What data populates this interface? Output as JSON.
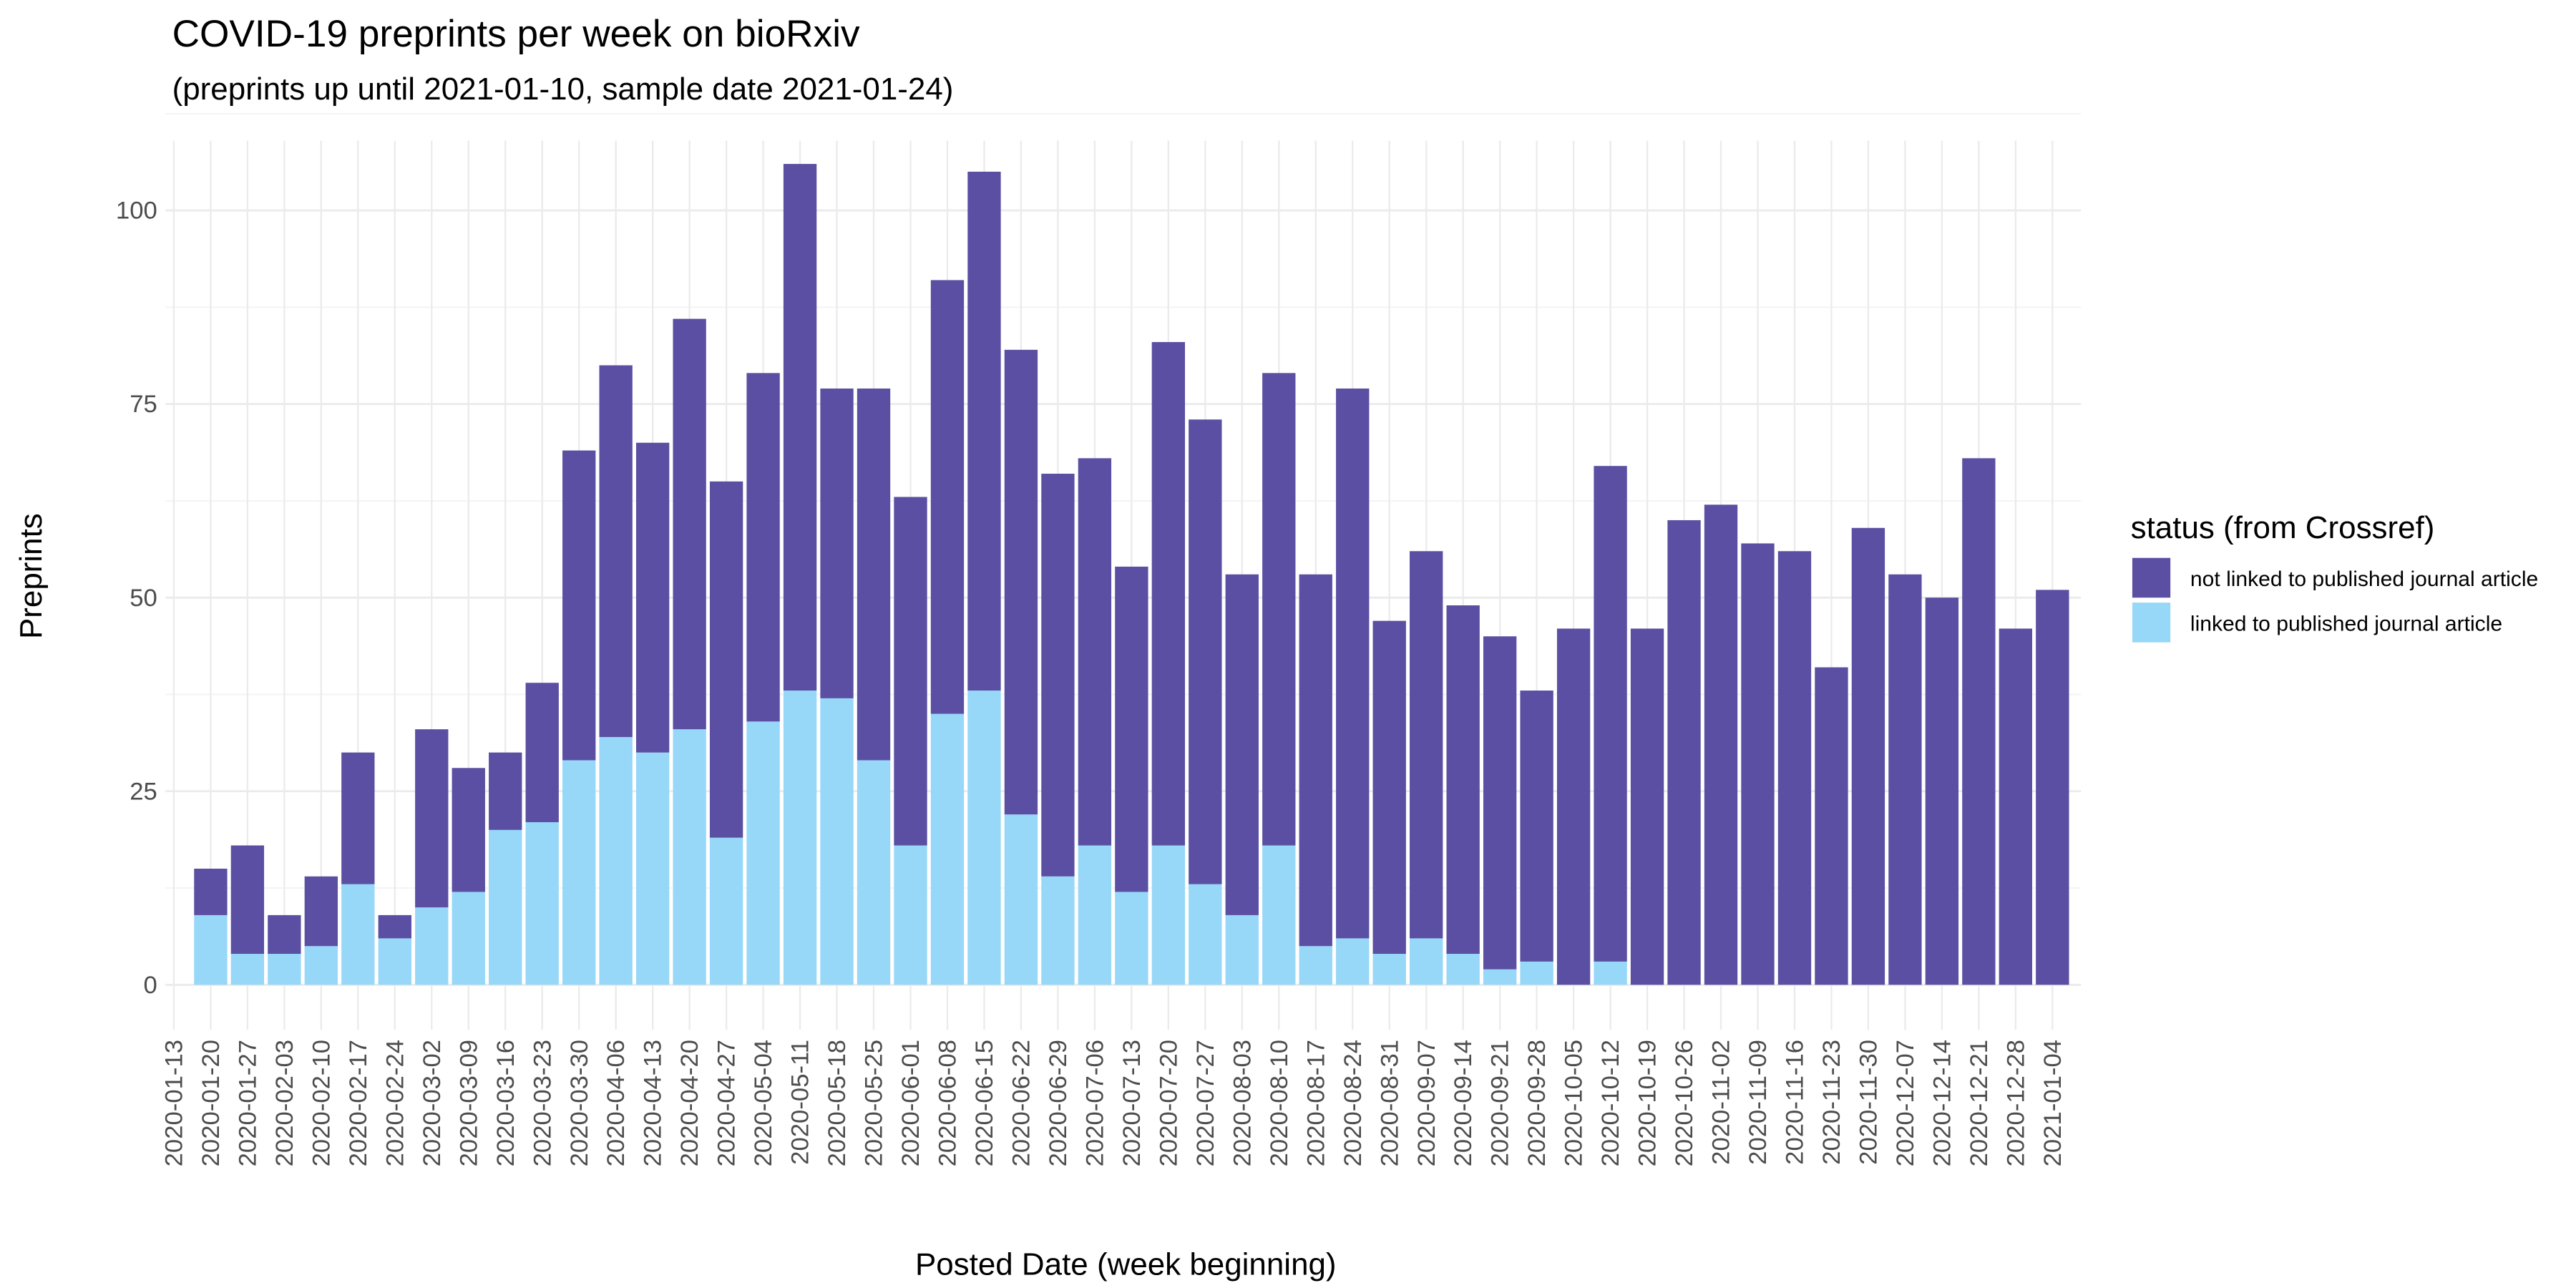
{
  "chart_data": {
    "type": "bar",
    "stacked": true,
    "title": "COVID-19 preprints per week on bioRxiv",
    "subtitle": "(preprints up until 2021-01-10, sample date 2021-01-24)",
    "x_label": "Posted Date (week beginning)",
    "y_label": "Preprints",
    "legend_title": "status (from Crossref)",
    "legend_position": "right",
    "grid": true,
    "categories": [
      "2020-01-13",
      "2020-01-20",
      "2020-01-27",
      "2020-02-03",
      "2020-02-10",
      "2020-02-17",
      "2020-02-24",
      "2020-03-02",
      "2020-03-09",
      "2020-03-16",
      "2020-03-23",
      "2020-03-30",
      "2020-04-06",
      "2020-04-13",
      "2020-04-20",
      "2020-04-27",
      "2020-05-04",
      "2020-05-11",
      "2020-05-18",
      "2020-05-25",
      "2020-06-01",
      "2020-06-08",
      "2020-06-15",
      "2020-06-22",
      "2020-06-29",
      "2020-07-06",
      "2020-07-13",
      "2020-07-20",
      "2020-07-27",
      "2020-08-03",
      "2020-08-10",
      "2020-08-17",
      "2020-08-24",
      "2020-08-31",
      "2020-09-07",
      "2020-09-14",
      "2020-09-21",
      "2020-09-28",
      "2020-10-05",
      "2020-10-12",
      "2020-10-19",
      "2020-10-26",
      "2020-11-02",
      "2020-11-09",
      "2020-11-16",
      "2020-11-23",
      "2020-11-30",
      "2020-12-07",
      "2020-12-14",
      "2020-12-21",
      "2020-12-28",
      "2021-01-04"
    ],
    "series": [
      {
        "name": "not linked to published journal article",
        "color": "#5a4fa2",
        "values": [
          null,
          6,
          14,
          5,
          9,
          17,
          3,
          23,
          16,
          10,
          18,
          40,
          48,
          40,
          53,
          46,
          45,
          68,
          40,
          48,
          45,
          56,
          67,
          60,
          52,
          50,
          42,
          65,
          60,
          44,
          61,
          48,
          71,
          43,
          50,
          45,
          43,
          35,
          46,
          64,
          46,
          60,
          62,
          57,
          56,
          41,
          59,
          53,
          50,
          68,
          46,
          51
        ]
      },
      {
        "name": "linked to published journal article",
        "color": "#97d7f7",
        "values": [
          null,
          9,
          4,
          4,
          5,
          13,
          6,
          10,
          12,
          20,
          21,
          29,
          32,
          30,
          33,
          19,
          34,
          38,
          37,
          29,
          18,
          35,
          38,
          22,
          14,
          18,
          12,
          18,
          13,
          9,
          18,
          5,
          6,
          4,
          6,
          4,
          2,
          3,
          0,
          3,
          0,
          0,
          0,
          0,
          0,
          0,
          0,
          0,
          0,
          0,
          0,
          0
        ]
      }
    ],
    "ylim": [
      -5.8,
      109
    ],
    "yticks": [
      0,
      25,
      50,
      75,
      100
    ]
  }
}
